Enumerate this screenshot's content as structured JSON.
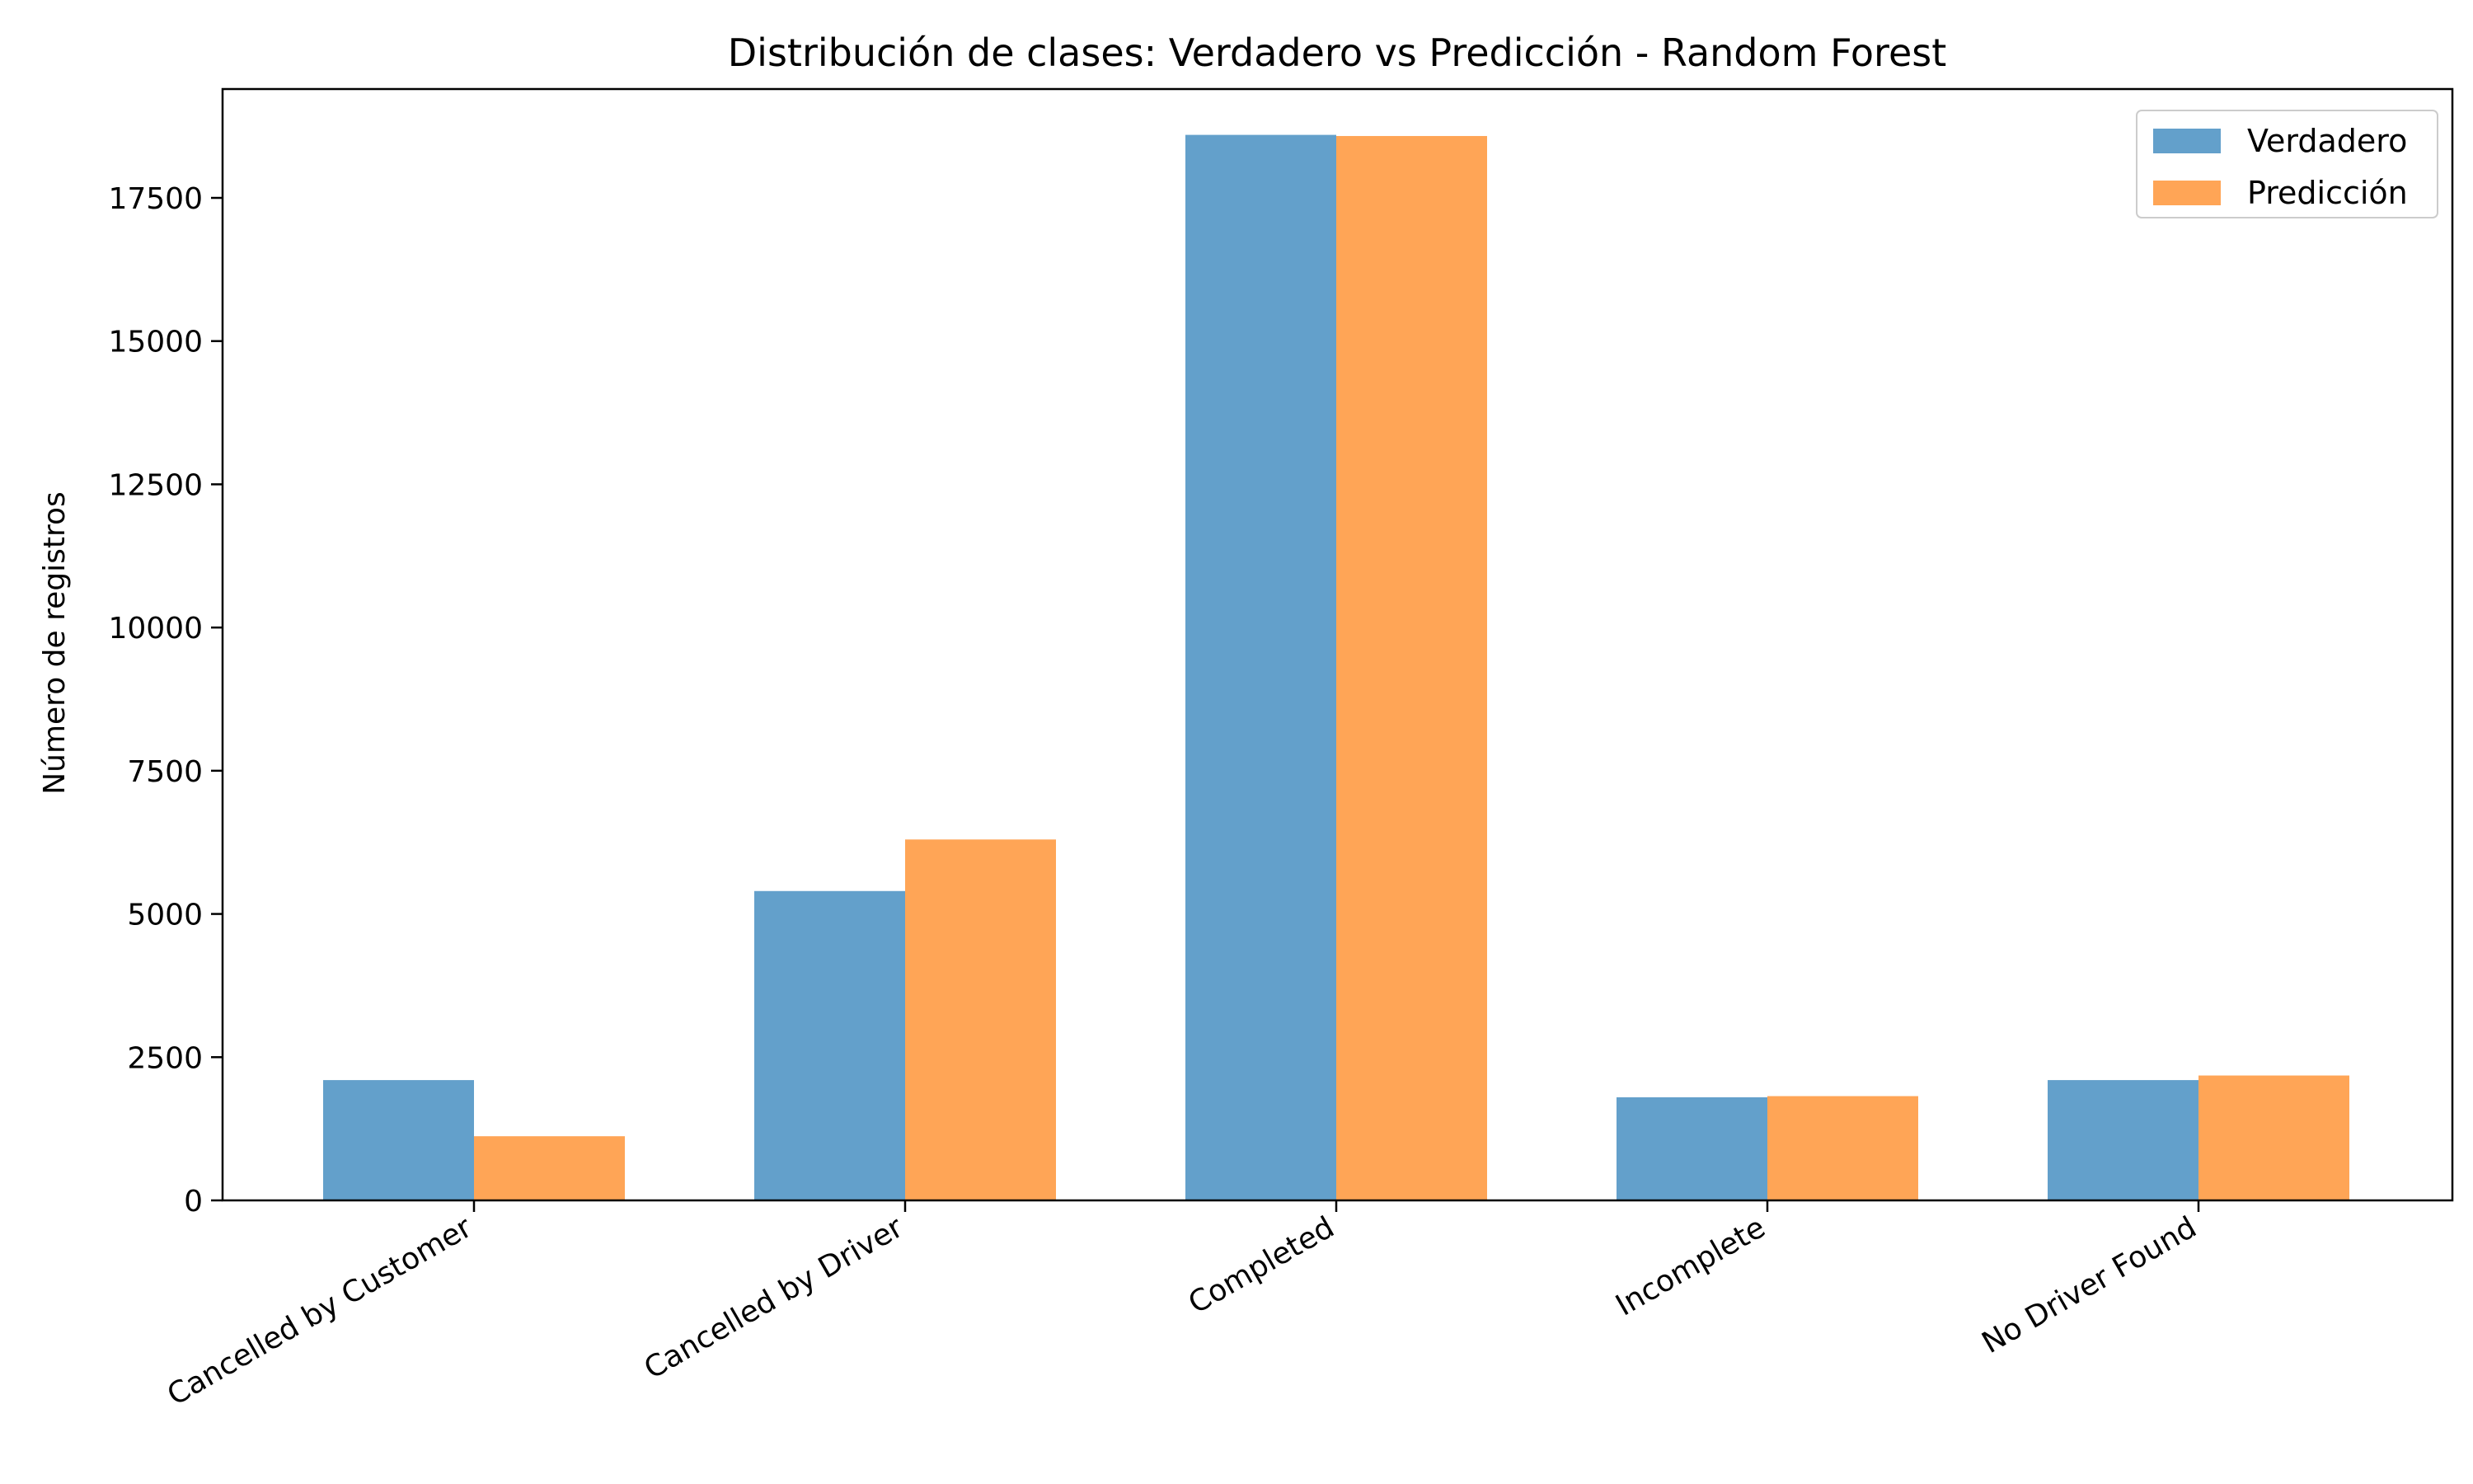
{
  "chart_data": {
    "type": "bar",
    "title": "Distribución de clases: Verdadero vs Predicción - Random Forest",
    "xlabel": "",
    "ylabel": "Número de registros",
    "categories": [
      "Cancelled by Customer",
      "Cancelled by Driver",
      "Completed",
      "Incomplete",
      "No Driver Found"
    ],
    "series": [
      {
        "name": "Verdadero",
        "values": [
          2100,
          5400,
          18600,
          1800,
          2100
        ],
        "color": "#63a0cb"
      },
      {
        "name": "Predicción",
        "values": [
          1120,
          6300,
          18580,
          1820,
          2180
        ],
        "color": "#ffa556"
      }
    ],
    "ylim": [
      0,
      19400
    ],
    "yticks": [
      0,
      2500,
      5000,
      7500,
      10000,
      12500,
      15000,
      17500
    ],
    "grid": false,
    "legend_position": "top-right"
  }
}
